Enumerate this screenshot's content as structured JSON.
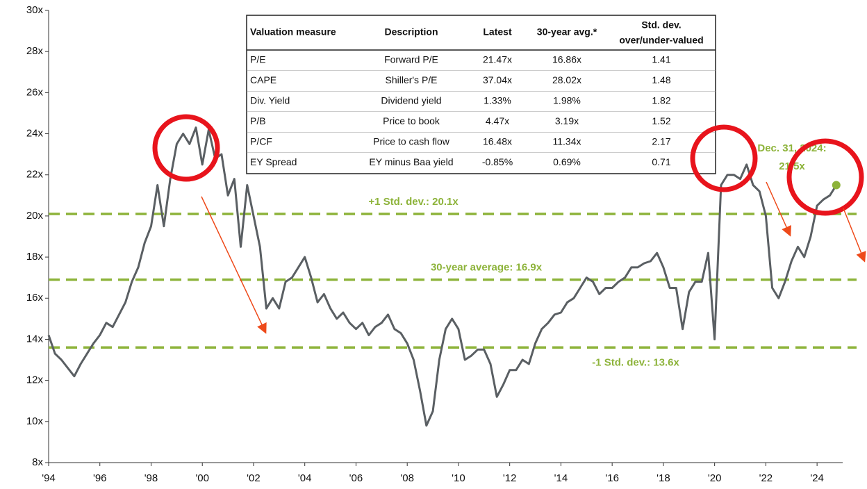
{
  "chart_data": {
    "type": "line",
    "xlim": [
      1994,
      2025
    ],
    "ylim": [
      8,
      30
    ],
    "yticks": [
      {
        "value": 8,
        "label": "8x"
      },
      {
        "value": 10,
        "label": "10x"
      },
      {
        "value": 12,
        "label": "12x"
      },
      {
        "value": 14,
        "label": "14x"
      },
      {
        "value": 16,
        "label": "16x"
      },
      {
        "value": 18,
        "label": "18x"
      },
      {
        "value": 20,
        "label": "20x"
      },
      {
        "value": 22,
        "label": "22x"
      },
      {
        "value": 24,
        "label": "24x"
      },
      {
        "value": 26,
        "label": "26x"
      },
      {
        "value": 28,
        "label": "28x"
      },
      {
        "value": 30,
        "label": "30x"
      }
    ],
    "xticks": [
      {
        "value": 1994,
        "label": "'94"
      },
      {
        "value": 1996,
        "label": "'96"
      },
      {
        "value": 1998,
        "label": "'98"
      },
      {
        "value": 2000,
        "label": "'00"
      },
      {
        "value": 2002,
        "label": "'02"
      },
      {
        "value": 2004,
        "label": "'04"
      },
      {
        "value": 2006,
        "label": "'06"
      },
      {
        "value": 2008,
        "label": "'08"
      },
      {
        "value": 2010,
        "label": "'10"
      },
      {
        "value": 2012,
        "label": "'12"
      },
      {
        "value": 2014,
        "label": "'14"
      },
      {
        "value": 2016,
        "label": "'16"
      },
      {
        "value": 2018,
        "label": "'18"
      },
      {
        "value": 2020,
        "label": "'20"
      },
      {
        "value": 2022,
        "label": "'22"
      },
      {
        "value": 2024,
        "label": "'24"
      }
    ],
    "x": [
      1994,
      1994.25,
      1994.5,
      1994.75,
      1995,
      1995.25,
      1995.5,
      1995.75,
      1996,
      1996.25,
      1996.5,
      1996.75,
      1997,
      1997.25,
      1997.5,
      1997.75,
      1998,
      1998.25,
      1998.5,
      1998.75,
      1999,
      1999.25,
      1999.5,
      1999.75,
      2000,
      2000.25,
      2000.5,
      2000.75,
      2001,
      2001.25,
      2001.5,
      2001.75,
      2002,
      2002.25,
      2002.5,
      2002.75,
      2003,
      2003.25,
      2003.5,
      2003.75,
      2004,
      2004.25,
      2004.5,
      2004.75,
      2005,
      2005.25,
      2005.5,
      2005.75,
      2006,
      2006.25,
      2006.5,
      2006.75,
      2007,
      2007.25,
      2007.5,
      2007.75,
      2008,
      2008.25,
      2008.5,
      2008.75,
      2009,
      2009.25,
      2009.5,
      2009.75,
      2010,
      2010.25,
      2010.5,
      2010.75,
      2011,
      2011.25,
      2011.5,
      2011.75,
      2012,
      2012.25,
      2012.5,
      2012.75,
      2013,
      2013.25,
      2013.5,
      2013.75,
      2014,
      2014.25,
      2014.5,
      2014.75,
      2015,
      2015.25,
      2015.5,
      2015.75,
      2016,
      2016.25,
      2016.5,
      2016.75,
      2017,
      2017.25,
      2017.5,
      2017.75,
      2018,
      2018.25,
      2018.5,
      2018.75,
      2019,
      2019.25,
      2019.5,
      2019.75,
      2020,
      2020.25,
      2020.5,
      2020.75,
      2021,
      2021.25,
      2021.5,
      2021.75,
      2022,
      2022.25,
      2022.5,
      2022.75,
      2023,
      2023.25,
      2023.5,
      2023.75,
      2024,
      2024.25,
      2024.5,
      2024.75
    ],
    "series": [
      {
        "color": "#5a5f63",
        "values": [
          14.2,
          13.3,
          13.0,
          12.6,
          12.2,
          12.8,
          13.3,
          13.8,
          14.2,
          14.8,
          14.6,
          15.2,
          15.8,
          16.8,
          17.5,
          18.7,
          19.5,
          21.5,
          19.5,
          21.8,
          23.5,
          24.0,
          23.5,
          24.3,
          22.5,
          24.2,
          22.8,
          23.0,
          21.0,
          21.8,
          18.5,
          21.5,
          20.0,
          18.5,
          15.5,
          16.0,
          15.5,
          16.8,
          17.0,
          17.5,
          18.0,
          17.0,
          15.8,
          16.2,
          15.5,
          15.0,
          15.3,
          14.8,
          14.5,
          14.8,
          14.2,
          14.6,
          14.8,
          15.2,
          14.5,
          14.3,
          13.8,
          13.0,
          11.5,
          9.8,
          10.5,
          13.0,
          14.5,
          15.0,
          14.5,
          13.0,
          13.2,
          13.5,
          13.5,
          12.8,
          11.2,
          11.8,
          12.5,
          12.5,
          13.0,
          12.8,
          13.8,
          14.5,
          14.8,
          15.2,
          15.3,
          15.8,
          16.0,
          16.5,
          17.0,
          16.8,
          16.2,
          16.5,
          16.5,
          16.8,
          17.0,
          17.5,
          17.5,
          17.7,
          17.8,
          18.2,
          17.5,
          16.5,
          16.5,
          14.5,
          16.3,
          16.8,
          16.8,
          18.2,
          14.0,
          21.5,
          22.0,
          22.0,
          21.8,
          22.5,
          21.5,
          21.2,
          20.0,
          16.5,
          16.0,
          16.8,
          17.8,
          18.5,
          18.0,
          19.0,
          20.5,
          20.8,
          21.0,
          21.5
        ]
      }
    ],
    "reference_lines": [
      {
        "value": 20.1,
        "label": "+1 Std. dev.: 20.1x"
      },
      {
        "value": 16.9,
        "label": "30-year average: 16.9x"
      },
      {
        "value": 13.6,
        "label": "-1 Std. dev.: 13.6x"
      }
    ],
    "ref_color": "#8db33a",
    "annotation": {
      "text": [
        "Dec. 31, 2024:",
        "21.5x"
      ],
      "x": 2024.75,
      "value": 21.5
    }
  },
  "table": {
    "columns": [
      "Valuation measure",
      "Description",
      "Latest",
      "30-year avg.*",
      [
        "Std. dev.",
        "over/under-valued"
      ]
    ],
    "rows": [
      [
        "P/E",
        "Forward P/E",
        "21.47x",
        "16.86x",
        "1.41"
      ],
      [
        "CAPE",
        "Shiller's P/E",
        "37.04x",
        "28.02x",
        "1.48"
      ],
      [
        "Div. Yield",
        "Dividend yield",
        "1.33%",
        "1.98%",
        "1.82"
      ],
      [
        "P/B",
        "Price to book",
        "4.47x",
        "3.19x",
        "1.52"
      ],
      [
        "P/CF",
        "Price to cash flow",
        "16.48x",
        "11.34x",
        "2.17"
      ],
      [
        "EY Spread",
        "EY minus Baa yield",
        "-0.85%",
        "0.69%",
        "0.71"
      ]
    ]
  }
}
